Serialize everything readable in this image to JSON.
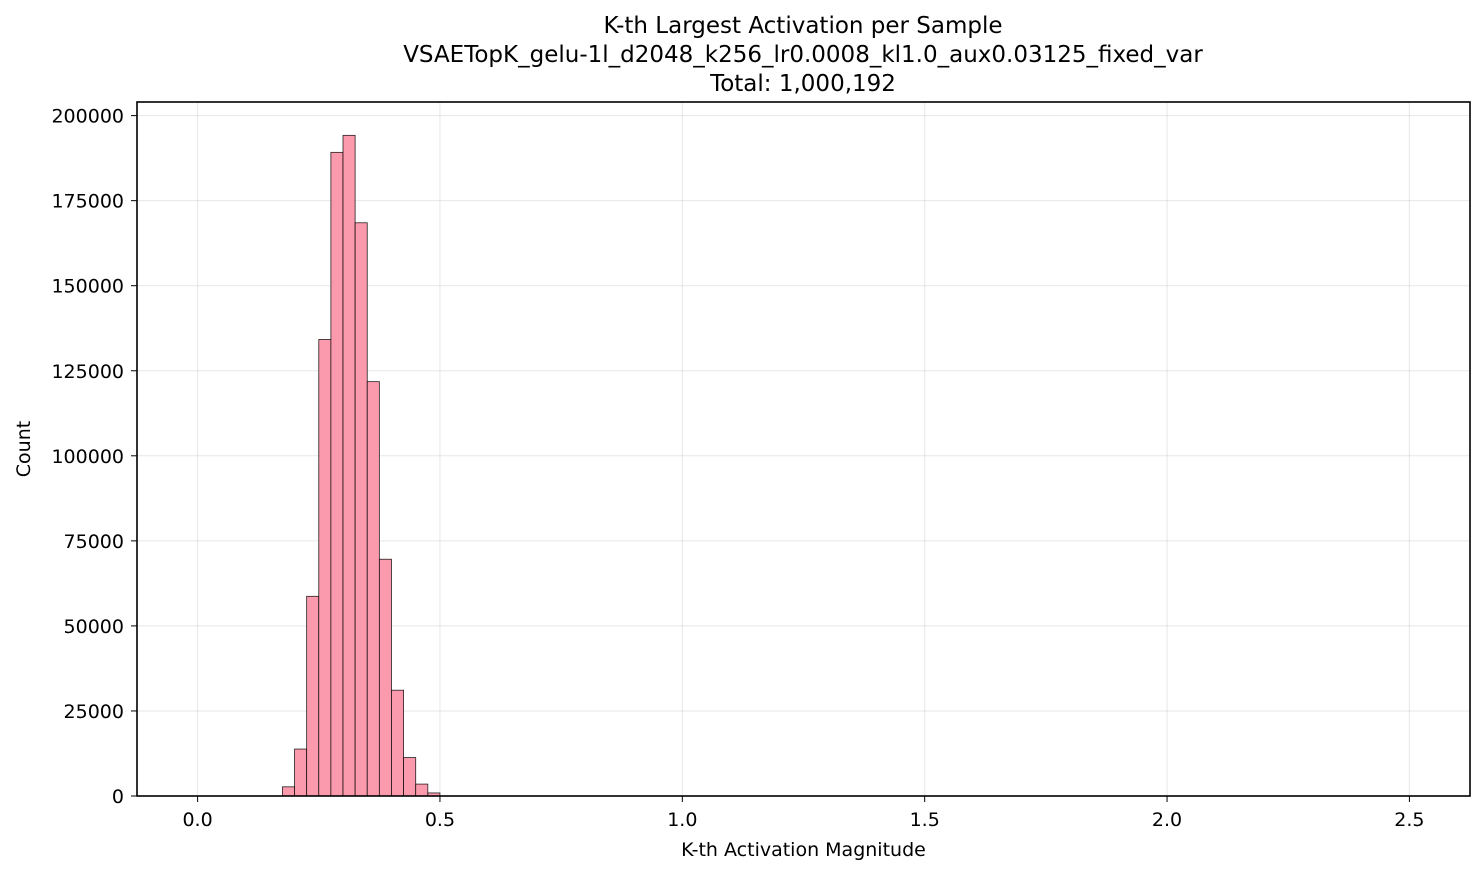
{
  "chart_data": {
    "type": "bar",
    "title": "K-th Largest Activation per Sample",
    "subtitle": "VSAETopK_gelu-1l_d2048_k256_lr0.0008_kl1.0_aux0.03125_fixed_var",
    "total_label": "Total: 1,000,192",
    "xlabel": "K-th Activation Magnitude",
    "ylabel": "Count",
    "xlim": [
      -0.125,
      2.625
    ],
    "ylim": [
      0,
      204000
    ],
    "xticks": [
      0.0,
      0.5,
      1.0,
      1.5,
      2.0,
      2.5
    ],
    "xtick_labels": [
      "0.0",
      "0.5",
      "1.0",
      "1.5",
      "2.0",
      "2.5"
    ],
    "yticks": [
      0,
      25000,
      50000,
      75000,
      100000,
      125000,
      150000,
      175000,
      200000
    ],
    "ytick_labels": [
      "0",
      "25000",
      "50000",
      "75000",
      "100000",
      "125000",
      "150000",
      "175000",
      "200000"
    ],
    "grid": true,
    "bar_color": "#fb9aac",
    "edge_color": "#000000",
    "bin_width": 0.025,
    "bins": [
      {
        "x0": 0.175,
        "count": 2700
      },
      {
        "x0": 0.2,
        "count": 13800
      },
      {
        "x0": 0.225,
        "count": 58700
      },
      {
        "x0": 0.25,
        "count": 134200
      },
      {
        "x0": 0.275,
        "count": 189200
      },
      {
        "x0": 0.3,
        "count": 194200
      },
      {
        "x0": 0.325,
        "count": 168500
      },
      {
        "x0": 0.35,
        "count": 121800
      },
      {
        "x0": 0.375,
        "count": 69600
      },
      {
        "x0": 0.4,
        "count": 31100
      },
      {
        "x0": 0.425,
        "count": 11300
      },
      {
        "x0": 0.45,
        "count": 3500
      },
      {
        "x0": 0.475,
        "count": 900
      }
    ]
  }
}
